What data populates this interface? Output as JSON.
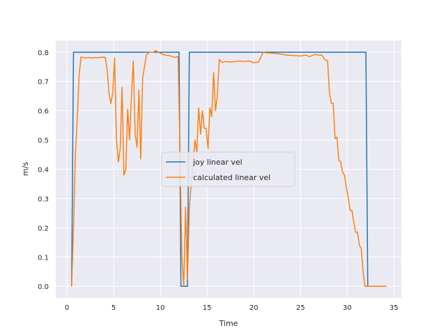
{
  "chart_data": {
    "type": "line",
    "xlabel": "Time",
    "ylabel": "m/s",
    "xlim": [
      -1.2,
      35.8
    ],
    "ylim": [
      -0.04,
      0.84
    ],
    "xticks": [
      0,
      5,
      10,
      15,
      20,
      25,
      30,
      35
    ],
    "yticks": [
      0.0,
      0.1,
      0.2,
      0.3,
      0.4,
      0.5,
      0.6,
      0.7,
      0.8
    ],
    "grid": true,
    "legend_position": "center",
    "series": [
      {
        "name": "joy linear vel",
        "color": "#1f77b4",
        "x": [
          0.5,
          0.7,
          12.0,
          12.2,
          12.9,
          13.1,
          32.0,
          32.2,
          34.2
        ],
        "y": [
          0.0,
          0.8,
          0.8,
          0.0,
          0.0,
          0.8,
          0.8,
          0.0,
          0.0
        ]
      },
      {
        "name": "calculated linear vel",
        "color": "#ff7f0e",
        "x": [
          0.5,
          0.7,
          0.9,
          1.1,
          1.3,
          1.5,
          1.7,
          2.0,
          2.3,
          2.6,
          2.9,
          3.2,
          3.5,
          3.8,
          4.1,
          4.3,
          4.5,
          4.7,
          4.9,
          5.1,
          5.3,
          5.5,
          5.7,
          5.9,
          6.1,
          6.3,
          6.5,
          6.7,
          6.9,
          7.1,
          7.3,
          7.5,
          7.7,
          7.9,
          8.1,
          8.3,
          8.5,
          8.8,
          9.2,
          9.5,
          9.8,
          10.1,
          10.5,
          11.0,
          11.5,
          11.9,
          12.1,
          12.3,
          12.5,
          12.7,
          12.9,
          13.1,
          13.3,
          13.5,
          13.7,
          13.9,
          14.1,
          14.3,
          14.5,
          14.7,
          14.9,
          15.1,
          15.3,
          15.5,
          15.7,
          15.9,
          16.1,
          16.3,
          16.6,
          17.0,
          17.5,
          18.0,
          18.5,
          19.0,
          19.5,
          20.0,
          20.5,
          21.0,
          21.3,
          21.8,
          22.5,
          23.0,
          23.5,
          24.0,
          24.5,
          25.0,
          25.5,
          26.0,
          26.5,
          27.0,
          27.3,
          27.6,
          27.9,
          28.1,
          28.3,
          28.5,
          28.7,
          28.9,
          29.1,
          29.3,
          29.5,
          29.7,
          29.9,
          30.1,
          30.3,
          30.5,
          30.7,
          30.9,
          31.1,
          31.3,
          31.5,
          31.7,
          31.9,
          32.1,
          32.4,
          33.0,
          33.6,
          34.2
        ],
        "y": [
          0.0,
          0.2,
          0.45,
          0.57,
          0.72,
          0.783,
          0.782,
          0.78,
          0.782,
          0.78,
          0.782,
          0.781,
          0.782,
          0.783,
          0.782,
          0.74,
          0.66,
          0.625,
          0.66,
          0.78,
          0.5,
          0.425,
          0.47,
          0.68,
          0.38,
          0.4,
          0.605,
          0.5,
          0.65,
          0.77,
          0.52,
          0.475,
          0.67,
          0.435,
          0.71,
          0.75,
          0.79,
          0.8,
          0.8,
          0.805,
          0.8,
          0.795,
          0.79,
          0.788,
          0.782,
          0.785,
          0.45,
          0.1,
          0.0,
          0.27,
          0.025,
          0.27,
          0.35,
          0.42,
          0.5,
          0.46,
          0.61,
          0.52,
          0.6,
          0.54,
          0.54,
          0.47,
          0.61,
          0.58,
          0.73,
          0.6,
          0.65,
          0.775,
          0.765,
          0.768,
          0.766,
          0.768,
          0.77,
          0.768,
          0.77,
          0.764,
          0.766,
          0.8,
          0.798,
          0.797,
          0.795,
          0.793,
          0.79,
          0.789,
          0.788,
          0.787,
          0.79,
          0.785,
          0.792,
          0.79,
          0.79,
          0.775,
          0.77,
          0.66,
          0.625,
          0.625,
          0.505,
          0.51,
          0.43,
          0.425,
          0.39,
          0.38,
          0.34,
          0.305,
          0.26,
          0.26,
          0.22,
          0.185,
          0.185,
          0.14,
          0.13,
          0.05,
          0.0,
          0.0,
          0.0,
          0.0,
          0.0,
          0.0
        ]
      }
    ]
  }
}
